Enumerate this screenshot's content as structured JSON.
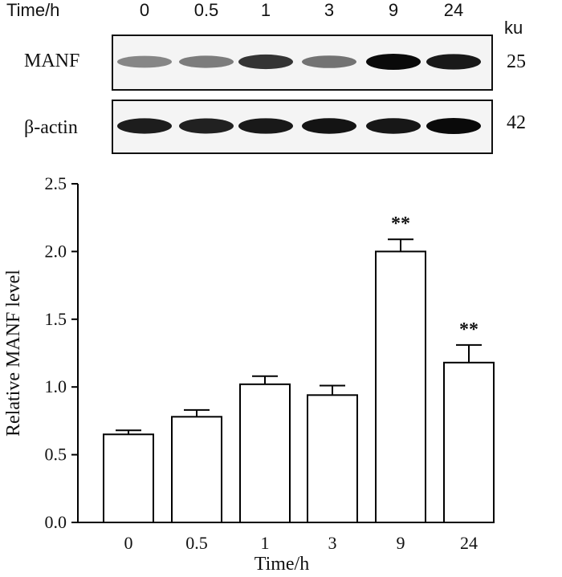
{
  "blot": {
    "time_label": "Time/h",
    "lanes": [
      "0",
      "0.5",
      "1",
      "3",
      "9",
      "24"
    ],
    "unit": "ku",
    "rows": [
      {
        "label": "MANF",
        "mw": "25",
        "intensity": [
          0.35,
          0.4,
          0.78,
          0.45,
          1.0,
          0.92
        ]
      },
      {
        "label": "β-actin",
        "mw": "42",
        "intensity": [
          0.9,
          0.88,
          0.92,
          0.95,
          0.93,
          1.0
        ]
      }
    ]
  },
  "chart_data": {
    "type": "bar",
    "categories": [
      "0",
      "0.5",
      "1",
      "3",
      "9",
      "24"
    ],
    "values": [
      0.65,
      0.78,
      1.02,
      0.94,
      2.0,
      1.18
    ],
    "errors": [
      0.03,
      0.05,
      0.06,
      0.07,
      0.09,
      0.13
    ],
    "annotations": [
      "",
      "",
      "",
      "",
      "**",
      "**"
    ],
    "xlabel": "Time/h",
    "ylabel": "Relative MANF level",
    "ylim": [
      0,
      2.5
    ],
    "yticks": [
      "0.0",
      "0.5",
      "1.0",
      "1.5",
      "2.0",
      "2.5"
    ],
    "grid": false,
    "bar_fill": "#ffffff",
    "bar_stroke": "#000000"
  }
}
